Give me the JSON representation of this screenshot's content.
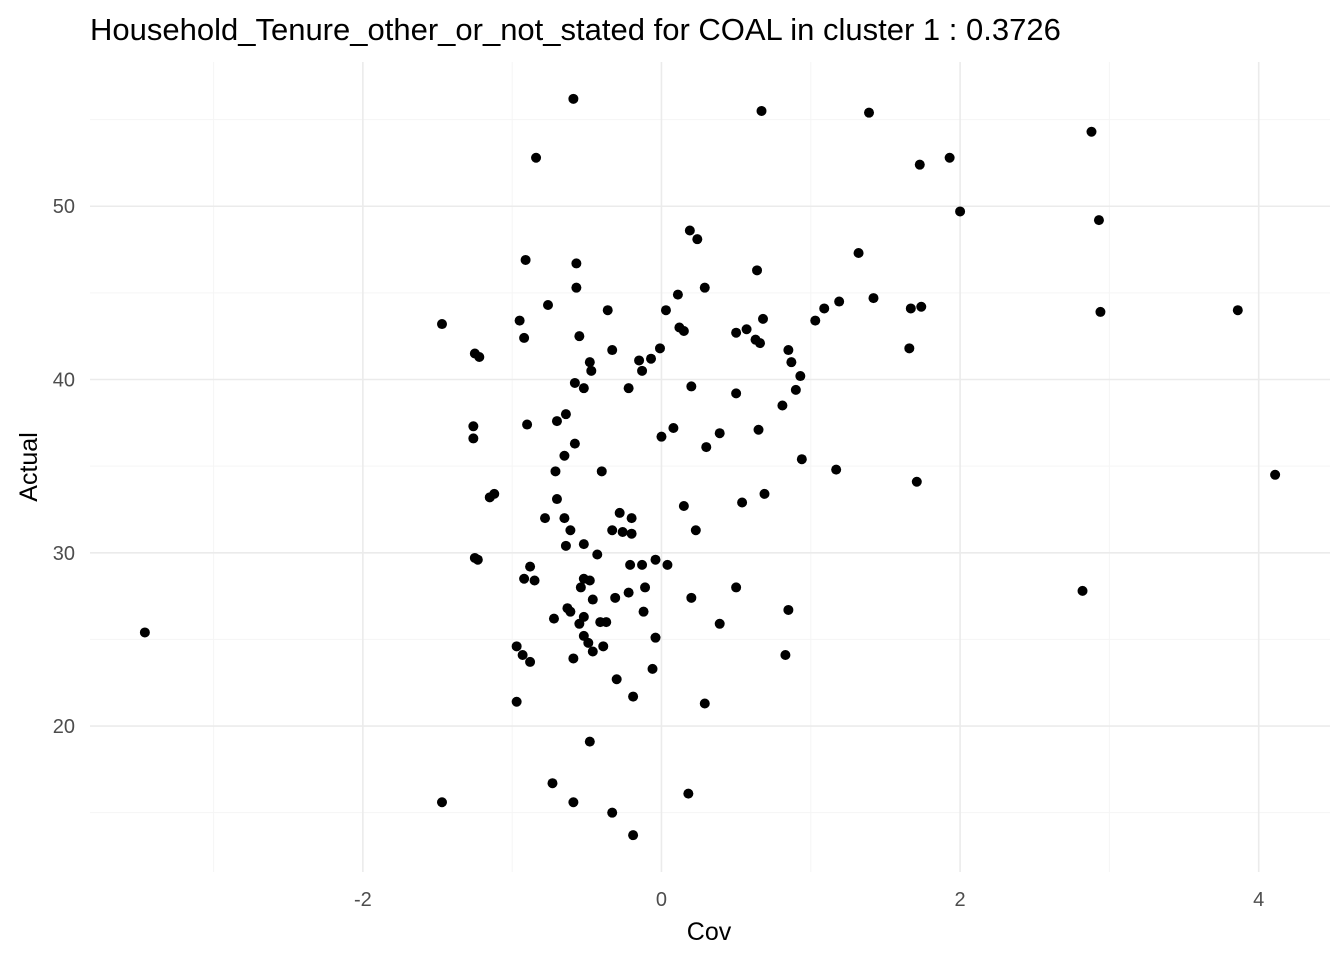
{
  "chart_data": {
    "type": "scatter",
    "title": "Household_Tenure_other_or_not_stated for COAL in cluster 1 : 0.3726",
    "xlabel": "Cov",
    "ylabel": "Actual",
    "xlim": [
      -3.45,
      4.1
    ],
    "ylim": [
      13.7,
      56.2
    ],
    "x_major_ticks": [
      -2,
      0,
      2,
      4
    ],
    "x_minor_ticks": [
      -3,
      -1,
      1,
      3
    ],
    "y_major_ticks": [
      20,
      30,
      40,
      50
    ],
    "y_minor_ticks": [
      15,
      25,
      35,
      45,
      55
    ],
    "grid": true,
    "point_color": "#000000",
    "points": [
      [
        -3.46,
        25.4
      ],
      [
        -1.47,
        43.2
      ],
      [
        -1.47,
        15.6
      ],
      [
        -1.25,
        41.5
      ],
      [
        -1.22,
        41.3
      ],
      [
        -1.26,
        37.3
      ],
      [
        -1.26,
        36.6
      ],
      [
        -1.15,
        33.2
      ],
      [
        -1.12,
        33.4
      ],
      [
        -1.25,
        29.7
      ],
      [
        -1.23,
        29.6
      ],
      [
        -0.97,
        24.6
      ],
      [
        -0.93,
        24.1
      ],
      [
        -0.88,
        23.7
      ],
      [
        -0.97,
        21.4
      ],
      [
        -0.95,
        43.4
      ],
      [
        -0.92,
        42.4
      ],
      [
        -0.9,
        37.4
      ],
      [
        -0.92,
        28.5
      ],
      [
        -0.88,
        29.2
      ],
      [
        -0.85,
        28.4
      ],
      [
        -0.84,
        52.8
      ],
      [
        -0.91,
        46.9
      ],
      [
        -0.78,
        32.0
      ],
      [
        -0.76,
        44.3
      ],
      [
        -0.73,
        16.7
      ],
      [
        -0.59,
        56.2
      ],
      [
        -0.57,
        46.7
      ],
      [
        -0.57,
        45.3
      ],
      [
        -0.55,
        42.5
      ],
      [
        -0.52,
        39.5
      ],
      [
        -0.48,
        41.0
      ],
      [
        -0.47,
        40.5
      ],
      [
        -0.58,
        39.8
      ],
      [
        -0.7,
        37.6
      ],
      [
        -0.64,
        38.0
      ],
      [
        -0.58,
        36.3
      ],
      [
        -0.65,
        35.6
      ],
      [
        -0.71,
        34.7
      ],
      [
        -0.7,
        33.1
      ],
      [
        -0.65,
        32.0
      ],
      [
        -0.61,
        31.3
      ],
      [
        -0.64,
        30.4
      ],
      [
        -0.52,
        30.5
      ],
      [
        -0.54,
        28.0
      ],
      [
        -0.52,
        28.5
      ],
      [
        -0.48,
        28.4
      ],
      [
        -0.46,
        27.3
      ],
      [
        -0.63,
        26.8
      ],
      [
        -0.61,
        26.6
      ],
      [
        -0.55,
        25.9
      ],
      [
        -0.52,
        26.3
      ],
      [
        -0.52,
        25.2
      ],
      [
        -0.49,
        24.8
      ],
      [
        -0.46,
        24.3
      ],
      [
        -0.59,
        23.9
      ],
      [
        -0.72,
        26.2
      ],
      [
        -0.48,
        19.1
      ],
      [
        -0.59,
        15.6
      ],
      [
        -0.33,
        15.0
      ],
      [
        -0.19,
        13.7
      ],
      [
        -0.43,
        29.9
      ],
      [
        -0.41,
        26.0
      ],
      [
        -0.37,
        26.0
      ],
      [
        -0.39,
        24.6
      ],
      [
        -0.3,
        22.7
      ],
      [
        -0.19,
        21.7
      ],
      [
        -0.36,
        44.0
      ],
      [
        -0.33,
        41.7
      ],
      [
        -0.4,
        34.7
      ],
      [
        -0.33,
        31.3
      ],
      [
        -0.28,
        32.3
      ],
      [
        -0.26,
        31.2
      ],
      [
        -0.2,
        32.0
      ],
      [
        -0.2,
        31.1
      ],
      [
        -0.31,
        27.4
      ],
      [
        -0.22,
        27.7
      ],
      [
        -0.21,
        29.3
      ],
      [
        -0.13,
        29.3
      ],
      [
        -0.11,
        28.0
      ],
      [
        -0.12,
        26.6
      ],
      [
        -0.06,
        23.3
      ],
      [
        -0.04,
        25.1
      ],
      [
        -0.04,
        29.6
      ],
      [
        -0.15,
        41.1
      ],
      [
        -0.07,
        41.2
      ],
      [
        -0.22,
        39.5
      ],
      [
        -0.13,
        40.5
      ],
      [
        -0.01,
        41.8
      ],
      [
        0.03,
        44.0
      ],
      [
        0.11,
        44.9
      ],
      [
        0.12,
        43.0
      ],
      [
        0.15,
        42.8
      ],
      [
        0.0,
        36.7
      ],
      [
        0.08,
        37.2
      ],
      [
        0.04,
        29.3
      ],
      [
        0.15,
        32.7
      ],
      [
        0.23,
        31.3
      ],
      [
        0.2,
        27.4
      ],
      [
        0.19,
        48.6
      ],
      [
        0.24,
        48.1
      ],
      [
        0.29,
        45.3
      ],
      [
        0.2,
        39.6
      ],
      [
        0.3,
        36.1
      ],
      [
        0.39,
        36.9
      ],
      [
        0.39,
        25.9
      ],
      [
        0.29,
        21.3
      ],
      [
        0.18,
        16.1
      ],
      [
        0.5,
        42.7
      ],
      [
        0.57,
        42.9
      ],
      [
        0.63,
        42.3
      ],
      [
        0.66,
        42.1
      ],
      [
        0.68,
        43.5
      ],
      [
        0.64,
        46.3
      ],
      [
        0.67,
        55.5
      ],
      [
        0.5,
        39.2
      ],
      [
        0.65,
        37.1
      ],
      [
        0.54,
        32.9
      ],
      [
        0.69,
        33.4
      ],
      [
        0.5,
        28.0
      ],
      [
        0.83,
        24.1
      ],
      [
        0.85,
        26.7
      ],
      [
        0.85,
        41.7
      ],
      [
        0.87,
        41.0
      ],
      [
        0.9,
        39.4
      ],
      [
        0.81,
        38.5
      ],
      [
        0.93,
        40.2
      ],
      [
        0.94,
        35.4
      ],
      [
        1.03,
        43.4
      ],
      [
        1.09,
        44.1
      ],
      [
        1.19,
        44.5
      ],
      [
        1.17,
        34.8
      ],
      [
        1.32,
        47.3
      ],
      [
        1.39,
        55.4
      ],
      [
        1.42,
        44.7
      ],
      [
        1.66,
        41.8
      ],
      [
        1.67,
        44.1
      ],
      [
        1.74,
        44.2
      ],
      [
        1.73,
        52.4
      ],
      [
        1.71,
        34.1
      ],
      [
        1.93,
        52.8
      ],
      [
        2.0,
        49.7
      ],
      [
        2.82,
        27.8
      ],
      [
        2.88,
        54.3
      ],
      [
        2.93,
        49.2
      ],
      [
        2.94,
        43.9
      ],
      [
        3.86,
        44.0
      ],
      [
        4.11,
        34.5
      ]
    ]
  }
}
